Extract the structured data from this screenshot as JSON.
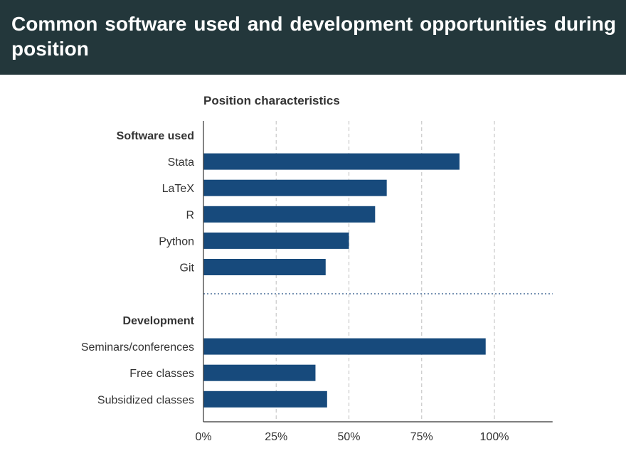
{
  "slide": {
    "title": "Common software used and development opportunities during position"
  },
  "chart_data": {
    "type": "bar",
    "orientation": "horizontal",
    "title": "Position characteristics",
    "xlabel": "",
    "ylabel": "",
    "xlim": [
      0,
      1.2
    ],
    "x_ticks": [
      {
        "value": 0,
        "label": "0%"
      },
      {
        "value": 0.25,
        "label": "25%"
      },
      {
        "value": 0.5,
        "label": "50%"
      },
      {
        "value": 0.75,
        "label": "75%"
      },
      {
        "value": 1.0,
        "label": "100%"
      }
    ],
    "grid": "vertical dashed",
    "bar_color": "#174a7c",
    "groups": [
      {
        "name": "Software used",
        "categories": [
          "Stata",
          "LaTeX",
          "R",
          "Python",
          "Git"
        ],
        "values": [
          0.88,
          0.63,
          0.59,
          0.5,
          0.42
        ]
      },
      {
        "name": "Development",
        "categories": [
          "Seminars/conferences",
          "Free classes",
          "Subsidized classes"
        ],
        "values": [
          0.97,
          0.385,
          0.425
        ]
      }
    ]
  }
}
